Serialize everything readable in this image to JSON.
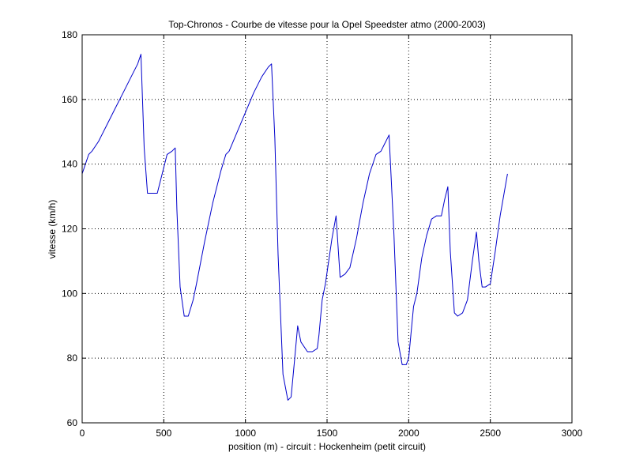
{
  "chart_data": {
    "type": "line",
    "title": "Top-Chronos - Courbe de vitesse pour la Opel Speedster atmo (2000-2003)",
    "xlabel": "position (m) - circuit : Hockenheim (petit circuit)",
    "ylabel": "vitesse (km/h)",
    "xlim": [
      0,
      3000
    ],
    "ylim": [
      60,
      180
    ],
    "xticks": [
      0,
      500,
      1000,
      1500,
      2000,
      2500,
      3000
    ],
    "yticks": [
      60,
      80,
      100,
      120,
      140,
      160,
      180
    ],
    "xtick_labels": [
      "0",
      "500",
      "1000",
      "1500",
      "2000",
      "2500",
      "3000"
    ],
    "ytick_labels": [
      "60",
      "80",
      "100",
      "120",
      "140",
      "160",
      "180"
    ],
    "grid": true,
    "line_color": "#0000cc",
    "series": [
      {
        "x": [
          0,
          20,
          40,
          60,
          100,
          150,
          200,
          250,
          300,
          340,
          360,
          380,
          400,
          425,
          460,
          490,
          520,
          550,
          570,
          580,
          600,
          625,
          650,
          680,
          700,
          750,
          800,
          850,
          880,
          900,
          950,
          1000,
          1050,
          1100,
          1140,
          1160,
          1180,
          1200,
          1230,
          1260,
          1280,
          1300,
          1320,
          1340,
          1380,
          1410,
          1440,
          1450,
          1470,
          1490,
          1530,
          1555,
          1580,
          1610,
          1640,
          1680,
          1720,
          1760,
          1800,
          1830,
          1850,
          1880,
          1910,
          1935,
          1960,
          1985,
          2000,
          2015,
          2030,
          2050,
          2080,
          2110,
          2140,
          2170,
          2200,
          2220,
          2240,
          2255,
          2280,
          2300,
          2330,
          2360,
          2390,
          2415,
          2430,
          2450,
          2470,
          2500,
          2530,
          2560,
          2605
        ],
        "y": [
          137,
          140,
          143,
          144,
          147,
          152,
          157,
          162,
          167,
          171,
          174,
          145,
          131,
          131,
          131,
          137,
          143,
          144,
          145,
          126,
          102,
          93,
          93,
          98,
          103,
          116,
          128,
          138,
          143,
          144,
          150,
          156,
          162,
          167,
          170,
          171,
          148,
          112,
          75,
          67,
          68,
          79,
          90,
          85,
          82,
          82,
          83,
          87,
          98,
          103,
          117,
          124,
          105,
          106,
          108,
          117,
          128,
          137,
          143,
          144,
          146,
          149,
          118,
          85,
          78,
          78,
          80,
          88,
          96,
          100,
          111,
          118,
          123,
          124,
          124,
          129,
          133,
          113,
          94,
          93,
          94,
          98,
          110,
          119,
          110,
          102,
          102,
          103,
          113,
          124,
          137
        ]
      }
    ]
  }
}
